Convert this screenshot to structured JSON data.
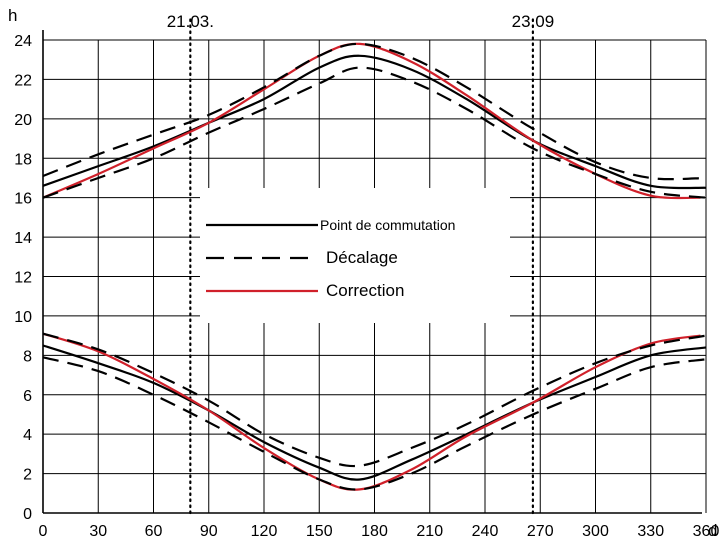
{
  "chart_data": {
    "type": "line",
    "title": "",
    "y_unit": "h",
    "x_unit": "d",
    "xlim": [
      0,
      360
    ],
    "ylim": [
      0,
      24
    ],
    "x_ticks": [
      0,
      30,
      60,
      90,
      120,
      150,
      180,
      210,
      240,
      270,
      300,
      330,
      360
    ],
    "y_ticks": [
      0,
      2,
      4,
      6,
      8,
      10,
      12,
      14,
      16,
      18,
      20,
      22,
      24
    ],
    "x_tick_labels": [
      "0",
      "30",
      "60",
      "90",
      "120",
      "150",
      "180",
      "210",
      "240",
      "270",
      "300",
      "330",
      "360"
    ],
    "y_tick_labels": [
      "0",
      "2",
      "4",
      "6",
      "8",
      "10",
      "12",
      "14",
      "16",
      "18",
      "20",
      "22",
      "24"
    ],
    "grid": true,
    "markers": [
      {
        "label": "21.03.",
        "x": 80
      },
      {
        "label": "23.09",
        "x": 266
      }
    ],
    "legend": {
      "placement": "center-left",
      "entries": [
        {
          "label": "Point de commutation",
          "style": "solid",
          "color": "#000000"
        },
        {
          "label": "Décalage",
          "style": "dashed",
          "color": "#000000"
        },
        {
          "label": "Correction",
          "style": "solid",
          "color": "#d0202a"
        }
      ]
    },
    "series": [
      {
        "name": "Point de commutation",
        "style": "solid",
        "color": "#000000",
        "x": [
          0,
          30,
          60,
          90,
          120,
          150,
          172,
          200,
          230,
          266,
          300,
          330,
          360
        ],
        "y": [
          16.6,
          17.6,
          18.6,
          19.8,
          21.0,
          22.6,
          23.2,
          22.5,
          21.0,
          18.9,
          17.6,
          16.6,
          16.5
        ]
      },
      {
        "name": "Correction",
        "style": "solid",
        "color": "#d0202a",
        "x": [
          0,
          30,
          60,
          90,
          120,
          150,
          172,
          200,
          230,
          266,
          300,
          330,
          357
        ],
        "y": [
          16.0,
          17.2,
          18.5,
          19.8,
          21.5,
          23.2,
          23.8,
          22.9,
          21.2,
          18.9,
          17.2,
          16.1,
          16.0
        ]
      },
      {
        "name": "Décalage",
        "style": "dashed",
        "color": "#000000",
        "x": [
          0,
          30,
          60,
          90,
          120,
          150,
          172,
          200,
          230,
          266,
          300,
          330,
          360
        ],
        "y": [
          17.1,
          18.2,
          19.2,
          20.2,
          21.6,
          23.2,
          23.8,
          23.1,
          21.6,
          19.5,
          17.8,
          17.0,
          17.0
        ]
      },
      {
        "name": "Décalage",
        "style": "dashed",
        "color": "#000000",
        "x": [
          0,
          30,
          60,
          90,
          120,
          150,
          172,
          200,
          230,
          266,
          300,
          330,
          360
        ],
        "y": [
          16.0,
          17.0,
          18.0,
          19.3,
          20.5,
          21.8,
          22.6,
          21.9,
          20.5,
          18.5,
          17.2,
          16.3,
          16.0
        ]
      },
      {
        "name": "Point de commutation",
        "style": "solid",
        "color": "#000000",
        "x": [
          0,
          30,
          60,
          90,
          120,
          150,
          172,
          200,
          230,
          266,
          300,
          330,
          360
        ],
        "y": [
          8.5,
          7.6,
          6.6,
          5.2,
          3.6,
          2.3,
          1.7,
          2.7,
          4.0,
          5.6,
          6.9,
          8.0,
          8.4
        ]
      },
      {
        "name": "Correction",
        "style": "solid",
        "color": "#d0202a",
        "x": [
          0,
          30,
          60,
          90,
          120,
          150,
          172,
          200,
          230,
          266,
          300,
          330,
          357
        ],
        "y": [
          9.1,
          8.2,
          6.8,
          5.2,
          3.3,
          1.7,
          1.2,
          2.2,
          3.9,
          5.6,
          7.4,
          8.6,
          9.0
        ]
      },
      {
        "name": "Décalage",
        "style": "dashed",
        "color": "#000000",
        "x": [
          0,
          30,
          60,
          90,
          120,
          150,
          172,
          200,
          230,
          266,
          300,
          330,
          360
        ],
        "y": [
          9.1,
          8.3,
          7.1,
          5.7,
          4.0,
          2.8,
          2.4,
          3.3,
          4.5,
          6.2,
          7.6,
          8.5,
          9.0
        ]
      },
      {
        "name": "Décalage",
        "style": "dashed",
        "color": "#000000",
        "x": [
          0,
          30,
          60,
          90,
          120,
          150,
          172,
          200,
          230,
          266,
          300,
          330,
          360
        ],
        "y": [
          7.9,
          7.2,
          6.0,
          4.6,
          3.1,
          1.7,
          1.2,
          2.0,
          3.4,
          5.0,
          6.3,
          7.4,
          7.8
        ]
      }
    ]
  }
}
